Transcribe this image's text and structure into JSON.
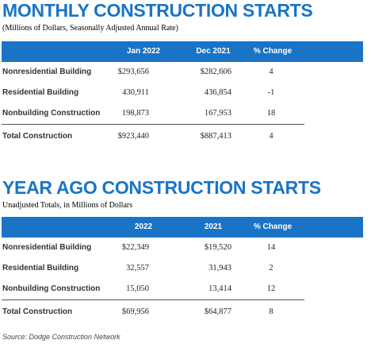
{
  "monthly": {
    "title": "MONTHLY CONSTRUCTION STARTS",
    "subtitle": "(Millions of Dollars, Seasonally Adjusted Annual Rate)",
    "headers": [
      "Jan 2022",
      "Dec 2021",
      "% Change"
    ],
    "rows": [
      {
        "label": "Nonresidential Building",
        "v1": "$293,656",
        "v2": "$282,606",
        "change": "4"
      },
      {
        "label": "Residential Building",
        "v1": "430,911",
        "v2": "436,854",
        "change": "-1"
      },
      {
        "label": "Nonbuilding Construction",
        "v1": "198,873",
        "v2": "167,953",
        "change": "18"
      }
    ],
    "total": {
      "label": "Total Construction",
      "v1": "$923,440",
      "v2": "$887,413",
      "change": "4"
    }
  },
  "yearago": {
    "title": "YEAR AGO CONSTRUCTION STARTS",
    "subtitle": "Unadjusted Totals, in Millions of Dollars",
    "headers": [
      "2022",
      "2021",
      "% Change"
    ],
    "rows": [
      {
        "label": "Nonresidential Building",
        "v1": "$22,349",
        "v2": "$19,520",
        "change": "14"
      },
      {
        "label": "Residential Building",
        "v1": "32,557",
        "v2": "31,943",
        "change": "2"
      },
      {
        "label": "Nonbuilding Construction",
        "v1": "15,050",
        "v2": "13,414",
        "change": "12"
      }
    ],
    "total": {
      "label": "Total Construction",
      "v1": "$69,956",
      "v2": "$64,877",
      "change": "8"
    }
  },
  "source": "Source: Dodge Construction Network",
  "colors": {
    "accent": "#1a74c6"
  }
}
